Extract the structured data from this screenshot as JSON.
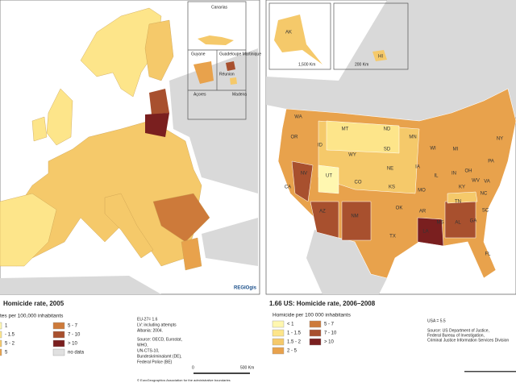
{
  "left_panel": {
    "insets": [
      "Canarias",
      "Guyane",
      "Guadeloupe Martinique",
      "Réunion",
      "Açores",
      "Madeira"
    ],
    "logo": "REGIOgis",
    "title": "Homicide rate, 2005",
    "legend_heading": "tes per 100,000 inhabitants",
    "legend": [
      {
        "label": "1",
        "color": "#fff7b0"
      },
      {
        "label": "- 1.5",
        "color": "#fde58a"
      },
      {
        "label": "5 - 2",
        "color": "#f5c96a"
      },
      {
        "label": "5",
        "color": "#e8a24c"
      },
      {
        "label": "5 - 7",
        "color": "#cd7a3a"
      },
      {
        "label": "7 - 10",
        "color": "#a8502e"
      },
      {
        "label": "> 10",
        "color": "#7a1f1f"
      },
      {
        "label": "no data",
        "color": "#e0e0e0"
      }
    ],
    "notes": [
      "EU-27= 1.6",
      "LV: including attempts",
      "Albania: 2004.",
      "Source: OECD, Eurostat,",
      "WHO,",
      "UN-CTS-10,",
      "Bundeskriminalamt (DE),",
      "Federal Police (BE)"
    ],
    "scale": [
      "0",
      "500 Km"
    ],
    "copyright": "© EuroGeographics Association for the administrative boundaries"
  },
  "right_panel": {
    "insets": [
      "AK",
      "1,500 Km",
      "HI",
      "200 Km"
    ],
    "states": [
      "WA",
      "OR",
      "CA",
      "NV",
      "ID",
      "MT",
      "WY",
      "UT",
      "AZ",
      "CO",
      "NM",
      "ND",
      "SD",
      "NE",
      "KS",
      "OK",
      "TX",
      "MN",
      "IA",
      "MO",
      "AR",
      "LA",
      "WI",
      "IL",
      "MI",
      "IN",
      "OH",
      "KY",
      "TN",
      "MS",
      "AL",
      "GA",
      "FL",
      "SC",
      "NC",
      "VA",
      "WV",
      "PA",
      "NY"
    ],
    "title": "1.66 US: Homicide rate, 2006–2008",
    "legend_heading": "Homicide per 100 000 inhabitants",
    "legend": [
      {
        "label": "< 1",
        "color": "#fff7b0"
      },
      {
        "label": "1 - 1.5",
        "color": "#fde58a"
      },
      {
        "label": "1.5 - 2",
        "color": "#f5c96a"
      },
      {
        "label": "2 - 5",
        "color": "#e8a24c"
      },
      {
        "label": "5 - 7",
        "color": "#cd7a3a"
      },
      {
        "label": "7 - 10",
        "color": "#a8502e"
      },
      {
        "label": "> 10",
        "color": "#7a1f1f"
      }
    ],
    "note": "USA = 5.5",
    "source": [
      "Source:  US Department of Justice,",
      "Federal Bureau of Investigation,",
      "Criminal Justice Information Services Division"
    ]
  }
}
